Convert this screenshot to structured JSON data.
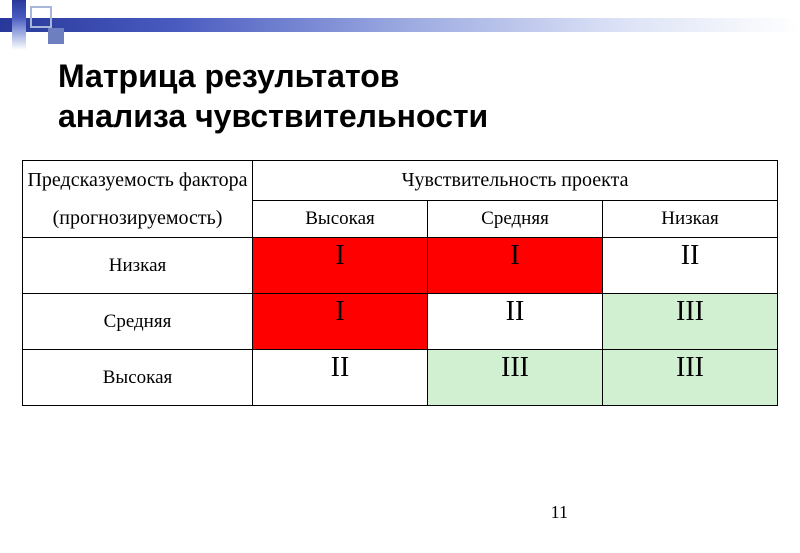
{
  "decor": {
    "stripe_gradient_css": "linear-gradient(90deg, #28389a 0%, #4a5bc0 22%, #9aa8e0 50%, #dde3f6 78%, #ffffff 100%)",
    "vstripe_gradient_css": "linear-gradient(180deg, #28389a 0%, #4a5bc0 35%, #9aa8e0 65%, #ffffff 100%)",
    "square_outline_color": "#a7b6d9",
    "square_solid_color": "#6d7fbe"
  },
  "title_line1": "Матрица результатов",
  "title_line2": "анализа чувствительности",
  "table": {
    "left_header_line1": "Предсказуемость фактора",
    "left_header_line2": "(прогнозируемость)",
    "top_header": "Чувствительность проекта",
    "sub_headers": [
      "Высокая",
      "Средняя",
      "Низкая"
    ],
    "row_labels": [
      "Низкая",
      "Средняя",
      "Высокая"
    ],
    "cells": [
      [
        {
          "text": "I",
          "bg": "#ff0000"
        },
        {
          "text": "I",
          "bg": "#ff0000"
        },
        {
          "text": "II",
          "bg": "#ffffff"
        }
      ],
      [
        {
          "text": "I",
          "bg": "#ff0000"
        },
        {
          "text": "II",
          "bg": "#ffffff"
        },
        {
          "text": "III",
          "bg": "#d1f0d1"
        }
      ],
      [
        {
          "text": "II",
          "bg": "#ffffff"
        },
        {
          "text": "III",
          "bg": "#d1f0d1"
        },
        {
          "text": "III",
          "bg": "#d1f0d1"
        }
      ]
    ],
    "cell_font_family": "Times New Roman, Times, serif",
    "header_font_family": "Times New Roman, Times, serif"
  },
  "slide_number": "11"
}
